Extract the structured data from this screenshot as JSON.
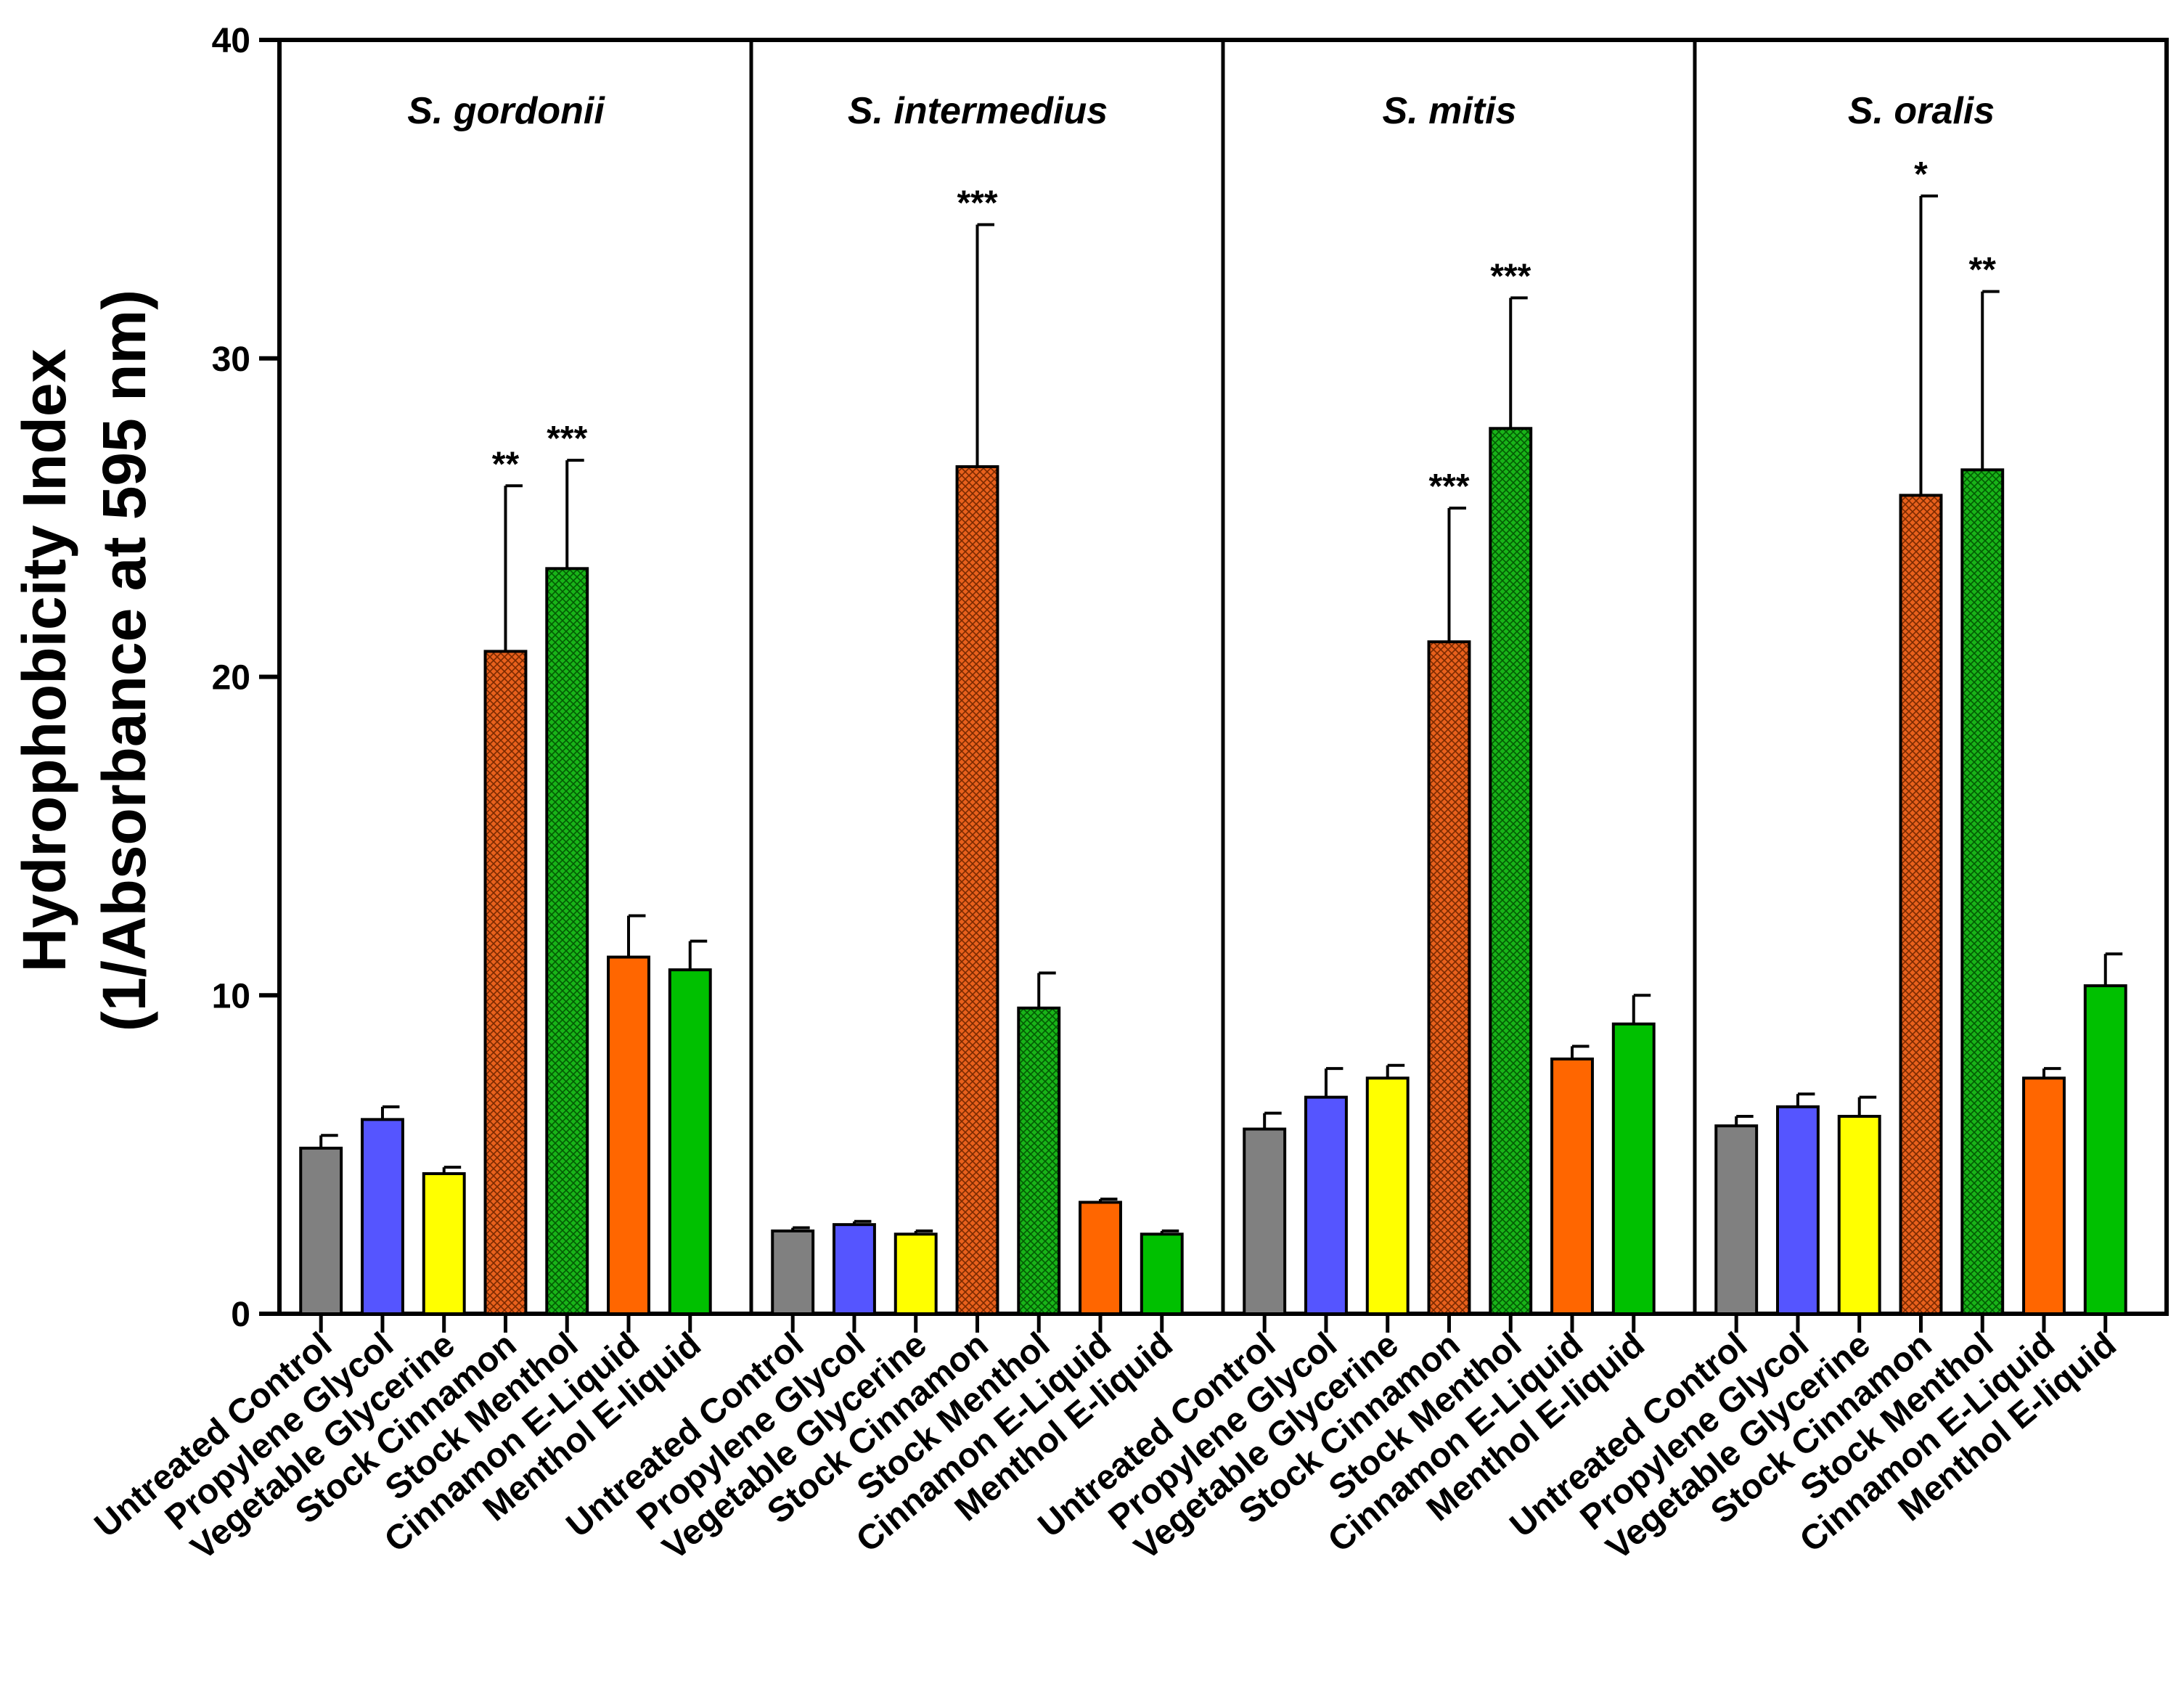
{
  "chart_data": {
    "type": "bar",
    "ylabel_line1": "Hydrophobicity Index",
    "ylabel_line2": "(1/Absorbance at 595 nm)",
    "ylim": [
      0,
      40
    ],
    "yticks": [
      "0",
      "10",
      "20",
      "30",
      "40"
    ],
    "categories": [
      "Untreated Control",
      "Propylene Glycol",
      "Vegetable Glycerine",
      "Stock Cinnamon",
      "Stock Menthol",
      "Cinnamon E-Liquid",
      "Menthol E-liquid"
    ],
    "colors": [
      "#808080",
      "#5555ff",
      "#ffff00",
      "#e8601c",
      "#18b418",
      "#ff6600",
      "#00c000"
    ],
    "hatched": [
      false,
      false,
      false,
      true,
      true,
      false,
      false
    ],
    "panels": [
      {
        "title": "S. gordonii",
        "values": [
          5.2,
          6.1,
          4.4,
          20.8,
          23.4,
          11.2,
          10.8
        ],
        "errors": [
          0.4,
          0.4,
          0.2,
          5.2,
          3.4,
          1.3,
          0.9
        ],
        "significance": [
          "",
          "",
          "",
          "**",
          "***",
          "",
          ""
        ]
      },
      {
        "title": "S. intermedius",
        "values": [
          2.6,
          2.8,
          2.5,
          26.6,
          9.6,
          3.5,
          2.5
        ],
        "errors": [
          0.1,
          0.1,
          0.1,
          7.6,
          1.1,
          0.1,
          0.1
        ],
        "significance": [
          "",
          "",
          "",
          "***",
          "",
          "",
          ""
        ]
      },
      {
        "title": "S. mitis",
        "values": [
          5.8,
          6.8,
          7.4,
          21.1,
          27.8,
          8.0,
          9.1
        ],
        "errors": [
          0.5,
          0.9,
          0.4,
          4.2,
          4.1,
          0.4,
          0.9
        ],
        "significance": [
          "",
          "",
          "",
          "***",
          "***",
          "",
          ""
        ]
      },
      {
        "title": "S. oralis",
        "values": [
          5.9,
          6.5,
          6.2,
          25.7,
          26.5,
          7.4,
          10.3
        ],
        "errors": [
          0.3,
          0.4,
          0.6,
          9.4,
          5.6,
          0.3,
          1.0
        ],
        "significance": [
          "",
          "",
          "",
          "*",
          "**",
          "",
          ""
        ]
      }
    ]
  }
}
